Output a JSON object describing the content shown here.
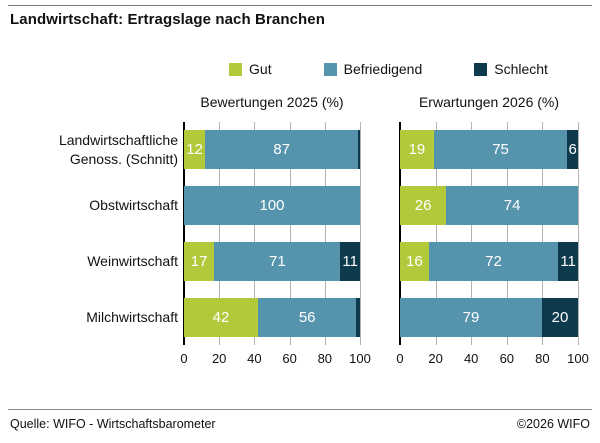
{
  "title": "Landwirtschaft: Ertragslage nach Branchen",
  "legend": {
    "items": [
      {
        "label": "Gut",
        "color": "#b3c93c"
      },
      {
        "label": "Befriedigend",
        "color": "#5694ad"
      },
      {
        "label": "Schlecht",
        "color": "#0e3a4e"
      }
    ]
  },
  "panel_headers": {
    "left": "Bewertungen 2025 (%)",
    "right": "Erwartungen 2026 (%)"
  },
  "footer": {
    "source": "Quelle: WIFO - Wirtschaftsbarometer",
    "copyright": "©2026 WIFO"
  },
  "colors": {
    "gut": "#b3c93c",
    "befriedigend": "#5694ad",
    "schlecht": "#0e3a4e",
    "gridline": "#b3b3b3",
    "axis": "#000000"
  },
  "chart_data": {
    "type": "bar",
    "orientation": "horizontal",
    "stacked": true,
    "title": "Landwirtschaft: Ertragslage nach Branchen",
    "categories": [
      "Landwirtschaftliche Genoss. (Schnitt)",
      "Obstwirtschaft",
      "Weinwirtschaft",
      "Milchwirtschaft"
    ],
    "category_label_lines": [
      [
        "Landwirtschaftliche",
        "Genoss. (Schnitt)"
      ],
      [
        "Obstwirtschaft"
      ],
      [
        "Weinwirtschaft"
      ],
      [
        "Milchwirtschaft"
      ]
    ],
    "series_names": [
      "Gut",
      "Befriedigend",
      "Schlecht"
    ],
    "panels": [
      {
        "title": "Bewertungen 2025 (%)",
        "series": [
          {
            "name": "Gut",
            "values": [
              12,
              0,
              17,
              42
            ]
          },
          {
            "name": "Befriedigend",
            "values": [
              87,
              100,
              71,
              56
            ]
          },
          {
            "name": "Schlecht",
            "values": [
              1,
              0,
              11,
              2
            ]
          }
        ]
      },
      {
        "title": "Erwartungen 2026 (%)",
        "series": [
          {
            "name": "Gut",
            "values": [
              19,
              26,
              16,
              0
            ]
          },
          {
            "name": "Befriedigend",
            "values": [
              75,
              74,
              72,
              79
            ]
          },
          {
            "name": "Schlecht",
            "values": [
              6,
              0,
              11,
              20
            ]
          }
        ]
      }
    ],
    "xlim": [
      0,
      100
    ],
    "x_ticks": [
      0,
      20,
      40,
      60,
      80,
      100
    ],
    "legend_position": "top",
    "grid": true,
    "value_label_min": 5
  }
}
